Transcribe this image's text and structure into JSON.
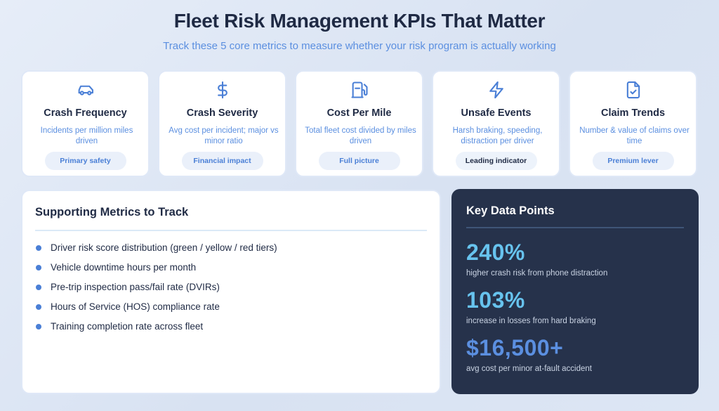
{
  "header": {
    "title": "Fleet Risk Management KPIs That Matter",
    "subtitle": "Track these 5 core metrics to measure whether your risk program is actually working"
  },
  "kpis": [
    {
      "icon": "car-icon",
      "title": "Crash Frequency",
      "desc": "Incidents per million miles driven",
      "tag": "Primary safety"
    },
    {
      "icon": "dollar-icon",
      "title": "Crash Severity",
      "desc": "Avg cost per incident; major vs minor ratio",
      "tag": "Financial impact"
    },
    {
      "icon": "fuel-pump-icon",
      "title": "Cost Per Mile",
      "desc": "Total fleet cost divided by miles driven",
      "tag": "Full picture"
    },
    {
      "icon": "lightning-icon",
      "title": "Unsafe Events",
      "desc": "Harsh braking, speeding, distraction per driver",
      "tag": "Leading indicator"
    },
    {
      "icon": "document-check-icon",
      "title": "Claim Trends",
      "desc": "Number & value of claims over time",
      "tag": "Premium lever"
    }
  ],
  "supporting": {
    "title": "Supporting Metrics to Track",
    "items": [
      "Driver risk score distribution (green / yellow / red tiers)",
      "Vehicle downtime hours per month",
      "Pre-trip inspection pass/fail rate (DVIRs)",
      "Hours of Service (HOS) compliance rate",
      "Training completion rate across fleet"
    ]
  },
  "key_data": {
    "title": "Key Data Points",
    "stats": [
      {
        "value": "240%",
        "label": "higher crash risk from phone distraction",
        "color": "#67c3ee"
      },
      {
        "value": "103%",
        "label": "increase in losses from hard braking",
        "color": "#67c3ee"
      },
      {
        "value": "$16,500+",
        "label": "avg cost per minor at-fault accident",
        "color": "#5b8fe0"
      }
    ]
  },
  "colors": {
    "accent": "#5b8fe0",
    "dark_panel": "#26324b",
    "heading": "#1f2a44"
  }
}
